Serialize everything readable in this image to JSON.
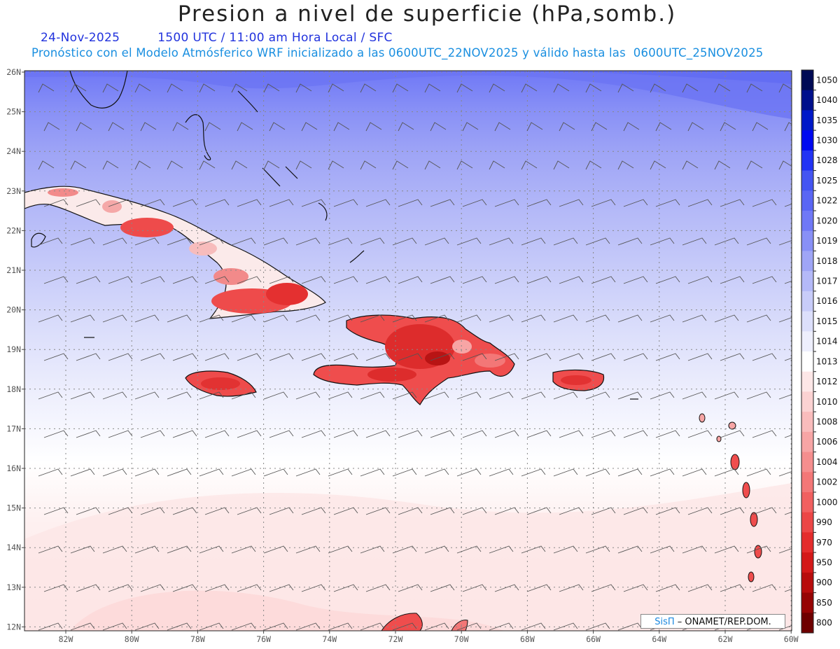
{
  "title": "Presion a nivel de superficie (hPa,somb.)",
  "date": "24-Nov-2025",
  "valid_time": "1500 UTC / 11:00 am Hora Local / SFC",
  "description": "Pronóstico con el Modelo Atmósferico WRF inicializado a las 0600UTC_22NOV2025 y válido hasta las  0600UTC_25NOV2025",
  "credit": {
    "brand": "SisΠ",
    "org": " – ONAMET/REP.DOM."
  },
  "lat_labels": [
    "26N",
    "25N",
    "24N",
    "23N",
    "22N",
    "21N",
    "20N",
    "19N",
    "18N",
    "17N",
    "16N",
    "15N",
    "14N",
    "13N",
    "12N"
  ],
  "lon_labels": [
    "82W",
    "80W",
    "78W",
    "76W",
    "74W",
    "72W",
    "70W",
    "68W",
    "66W",
    "64W",
    "62W",
    "60W"
  ],
  "colorbar": {
    "levels": [
      "1050",
      "1040",
      "1035",
      "1030",
      "1028",
      "1025",
      "1022",
      "1020",
      "1019",
      "1018",
      "1017",
      "1016",
      "1015",
      "1014",
      "1013",
      "1012",
      "1010",
      "1008",
      "1006",
      "1004",
      "1002",
      "1000",
      "990",
      "970",
      "950",
      "900",
      "850",
      "800"
    ],
    "colors": [
      "#000a55",
      "#00108c",
      "#0018c8",
      "#0008f0",
      "#2233f4",
      "#4455f2",
      "#5a66f4",
      "#6f78f6",
      "#8890f6",
      "#9fa5f6",
      "#b4b9f8",
      "#c8ccf9",
      "#dcdffb",
      "#eeeffd",
      "#ffffff",
      "#fde7e7",
      "#fbd2d2",
      "#f9bcbc",
      "#f7a5a5",
      "#f58e8e",
      "#f37777",
      "#f16060",
      "#ec4646",
      "#e42c2c",
      "#d41818",
      "#b80c0c",
      "#960404",
      "#6e0000"
    ]
  }
}
